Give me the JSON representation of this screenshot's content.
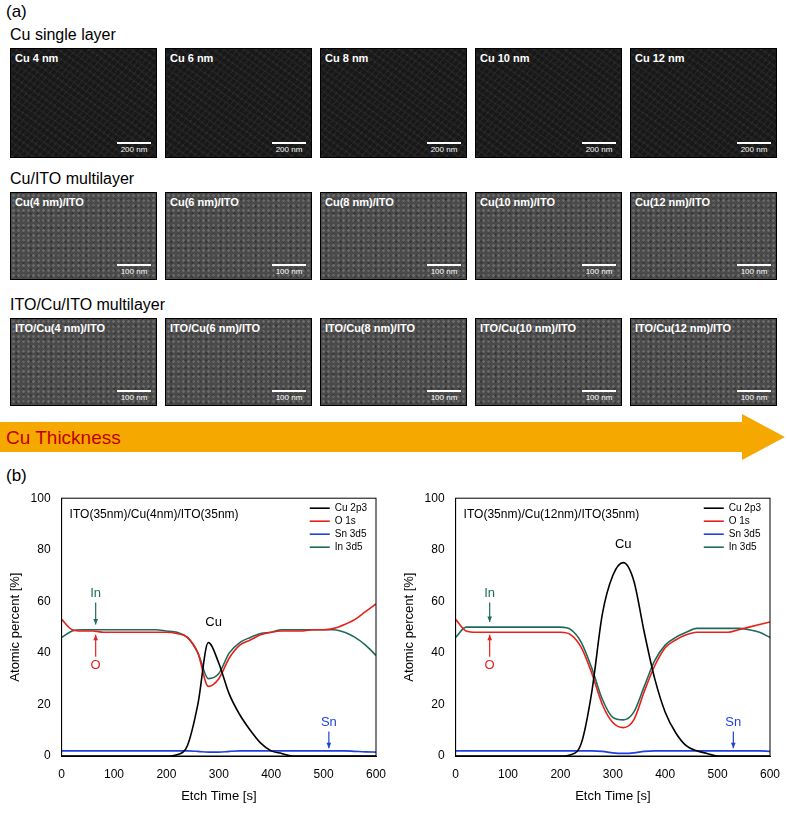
{
  "panel_a": {
    "label": "(a)",
    "rows": [
      {
        "title": "Cu single layer",
        "images": [
          {
            "label": "Cu 4 nm",
            "scale_bar": "200 nm"
          },
          {
            "label": "Cu 6 nm",
            "scale_bar": "200 nm"
          },
          {
            "label": "Cu 8 nm",
            "scale_bar": "200 nm"
          },
          {
            "label": "Cu 10 nm",
            "scale_bar": "200 nm"
          },
          {
            "label": "Cu 12 nm",
            "scale_bar": "200 nm"
          }
        ]
      },
      {
        "title": "Cu/ITO multilayer",
        "images": [
          {
            "label": "Cu(4 nm)/ITO",
            "scale_bar": "100 nm"
          },
          {
            "label": "Cu(6 nm)/ITO",
            "scale_bar": "100 nm"
          },
          {
            "label": "Cu(8 nm)/ITO",
            "scale_bar": "100 nm"
          },
          {
            "label": "Cu(10 nm)/ITO",
            "scale_bar": "100 nm"
          },
          {
            "label": "Cu(12 nm)/ITO",
            "scale_bar": "100 nm"
          }
        ]
      },
      {
        "title": "ITO/Cu/ITO multilayer",
        "images": [
          {
            "label": "ITO/Cu(4 nm)/ITO",
            "scale_bar": "100 nm"
          },
          {
            "label": "ITO/Cu(6 nm)/ITO",
            "scale_bar": "100 nm"
          },
          {
            "label": "ITO/Cu(8 nm)/ITO",
            "scale_bar": "100 nm"
          },
          {
            "label": "ITO/Cu(10 nm)/ITO",
            "scale_bar": "100 nm"
          },
          {
            "label": "ITO/Cu(12 nm)/ITO",
            "scale_bar": "100 nm"
          }
        ]
      }
    ],
    "arrow_label": "Cu Thickness"
  },
  "panel_b_label": "(b)",
  "chart_data": [
    {
      "type": "line",
      "title": "ITO(35nm)/Cu(4nm)/ITO(35nm)",
      "x_label": "Etch Time [s]",
      "y_label": "Atomic percent [%]",
      "x": [
        0,
        20,
        40,
        60,
        80,
        100,
        120,
        140,
        160,
        180,
        200,
        220,
        240,
        260,
        280,
        300,
        320,
        340,
        360,
        380,
        400,
        420,
        440,
        460,
        480,
        500,
        520,
        540,
        560,
        580,
        600
      ],
      "xlim": [
        0,
        600
      ],
      "xticks": [
        0,
        100,
        200,
        300,
        400,
        500,
        600
      ],
      "ylim": [
        0,
        100
      ],
      "yticks": [
        0,
        20,
        40,
        60,
        80,
        100
      ],
      "grid": false,
      "legend": "upper right",
      "series": [
        {
          "name": "Cu 2p3",
          "color": "#000000",
          "values": [
            0,
            0,
            0,
            0,
            0,
            0,
            0,
            0,
            0,
            0,
            0,
            0.5,
            4,
            20,
            44,
            36,
            24,
            16,
            10,
            5,
            2,
            1,
            0,
            0,
            0,
            0,
            0,
            0,
            0,
            0,
            0
          ]
        },
        {
          "name": "O 1s",
          "color": "#e8201a",
          "values": [
            53,
            49,
            48.5,
            48.5,
            48,
            48,
            48,
            48,
            48,
            48,
            48,
            47.5,
            46,
            40,
            27,
            30,
            38,
            43,
            45,
            47,
            48,
            48.5,
            48.5,
            48.5,
            49,
            49,
            49.5,
            51,
            53,
            56,
            59
          ]
        },
        {
          "name": "Sn 3d5",
          "color": "#1f3fe0",
          "values": [
            2,
            2,
            2,
            2,
            2,
            2,
            2,
            2,
            2,
            2,
            2,
            2,
            2,
            1.8,
            1.5,
            1.5,
            1.8,
            2,
            2,
            2,
            2,
            2,
            2,
            2,
            2,
            2,
            2,
            2,
            1.8,
            1.6,
            1.5
          ]
        },
        {
          "name": "In 3d5",
          "color": "#1e6b5c",
          "values": [
            46,
            48.5,
            49,
            49,
            49,
            49,
            49,
            49,
            49,
            49,
            48.5,
            48,
            46,
            40,
            30,
            32,
            40,
            44,
            46,
            47.5,
            48,
            49,
            49,
            49,
            49,
            49,
            49,
            48,
            46,
            43,
            39
          ]
        }
      ],
      "annotations": [
        {
          "text": "In",
          "x": 65,
          "y": 63,
          "color": "#1e6b5c",
          "arrow_to": [
            65,
            51
          ]
        },
        {
          "text": "O",
          "x": 65,
          "y": 35,
          "color": "#e8201a",
          "arrow_to": [
            65,
            47
          ]
        },
        {
          "text": "Cu",
          "x": 290,
          "y": 52,
          "color": "#000000"
        },
        {
          "text": "Sn",
          "x": 510,
          "y": 13,
          "color": "#1f3fe0",
          "arrow_to": [
            510,
            3
          ]
        }
      ]
    },
    {
      "type": "line",
      "title": "ITO(35nm)/Cu(12nm)/ITO(35nm)",
      "x_label": "Etch Time [s]",
      "y_label": "Atomic percent [%]",
      "x": [
        0,
        20,
        40,
        60,
        80,
        100,
        120,
        140,
        160,
        180,
        200,
        220,
        240,
        260,
        280,
        300,
        320,
        340,
        360,
        380,
        400,
        420,
        440,
        460,
        480,
        500,
        520,
        540,
        560,
        580,
        600
      ],
      "xlim": [
        0,
        600
      ],
      "xticks": [
        0,
        100,
        200,
        300,
        400,
        500,
        600
      ],
      "ylim": [
        0,
        100
      ],
      "yticks": [
        0,
        20,
        40,
        60,
        80,
        100
      ],
      "grid": false,
      "legend": "upper right",
      "series": [
        {
          "name": "Cu 2p3",
          "color": "#000000",
          "values": [
            0,
            0,
            0,
            0,
            0,
            0,
            0,
            0,
            0,
            0,
            0,
            0.5,
            5,
            25,
            55,
            70,
            75,
            68,
            48,
            30,
            17,
            9,
            4,
            2,
            1,
            0,
            0,
            0,
            0,
            0,
            0
          ]
        },
        {
          "name": "O 1s",
          "color": "#e8201a",
          "values": [
            53,
            48.5,
            48,
            48,
            48,
            48,
            48,
            48,
            48,
            48,
            48,
            47,
            42,
            32,
            20,
            13,
            11,
            14,
            25,
            35,
            42,
            45,
            47,
            48,
            48,
            48,
            48,
            49,
            50,
            51,
            52
          ]
        },
        {
          "name": "Sn 3d5",
          "color": "#1f3fe0",
          "values": [
            2,
            2,
            2,
            2,
            2,
            2,
            2,
            2,
            2,
            2,
            2,
            2,
            2,
            2,
            1.8,
            1.2,
            1,
            1.2,
            1.8,
            2,
            2,
            2,
            2,
            2,
            2,
            2,
            2,
            2,
            2,
            2,
            1.8
          ]
        },
        {
          "name": "In 3d5",
          "color": "#1e6b5c",
          "values": [
            46,
            50,
            50,
            50,
            50,
            50,
            50,
            50,
            50,
            50,
            50,
            49,
            44,
            34,
            22,
            15,
            14,
            17,
            27,
            37,
            43,
            46,
            48,
            49.5,
            49.5,
            49.5,
            49.5,
            49.5,
            49,
            48,
            46
          ]
        }
      ],
      "annotations": [
        {
          "text": "In",
          "x": 65,
          "y": 63,
          "color": "#1e6b5c",
          "arrow_to": [
            65,
            52
          ]
        },
        {
          "text": "O",
          "x": 65,
          "y": 35,
          "color": "#e8201a",
          "arrow_to": [
            65,
            47
          ]
        },
        {
          "text": "Cu",
          "x": 320,
          "y": 82,
          "color": "#000000"
        },
        {
          "text": "Sn",
          "x": 530,
          "y": 13,
          "color": "#1f3fe0",
          "arrow_to": [
            530,
            3
          ]
        }
      ]
    }
  ]
}
